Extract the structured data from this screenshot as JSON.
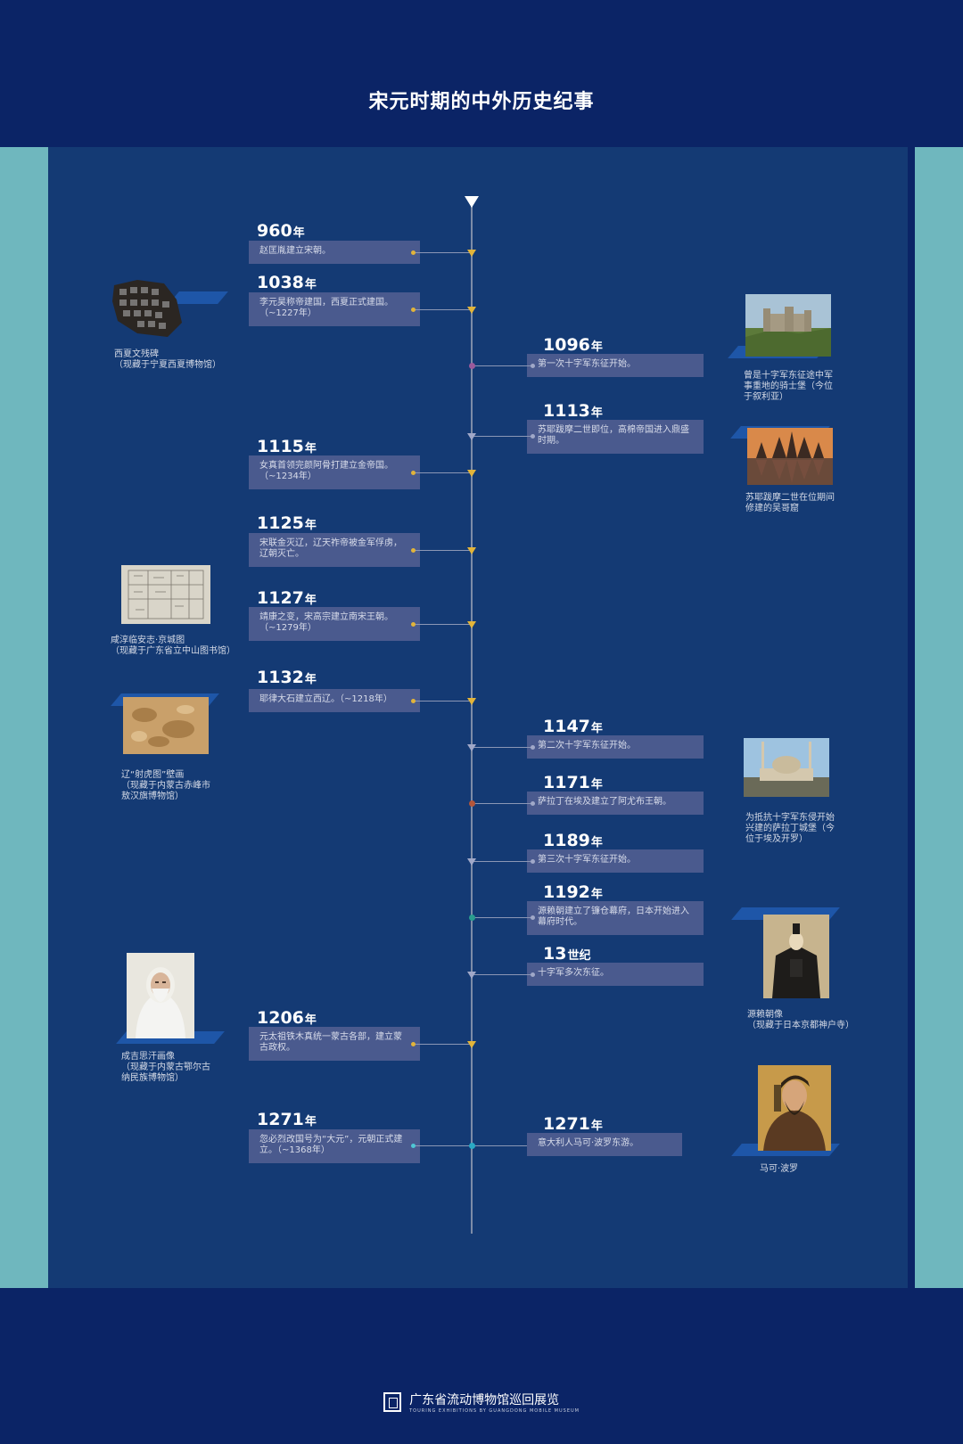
{
  "title": "宋元时期的中外历史纪事",
  "year_unit": "年",
  "century_unit": "世纪",
  "events": [
    {
      "year": "960",
      "unit": "年",
      "text": "赵匡胤建立宋朝。"
    },
    {
      "year": "1038",
      "unit": "年",
      "text": "李元昊称帝建国，西夏正式建国。（~1227年）"
    },
    {
      "year": "1096",
      "unit": "年",
      "text": "第一次十字军东征开始。"
    },
    {
      "year": "1113",
      "unit": "年",
      "text": "苏耶跋摩二世即位，高棉帝国进入鼎盛时期。"
    },
    {
      "year": "1115",
      "unit": "年",
      "text": "女真首领完颜阿骨打建立金帝国。（~1234年）"
    },
    {
      "year": "1125",
      "unit": "年",
      "text": "宋联金灭辽，辽天祚帝被金军俘虏，辽朝灭亡。"
    },
    {
      "year": "1127",
      "unit": "年",
      "text": "靖康之变，宋高宗建立南宋王朝。（~1279年）"
    },
    {
      "year": "1132",
      "unit": "年",
      "text": "耶律大石建立西辽。（~1218年）"
    },
    {
      "year": "1147",
      "unit": "年",
      "text": "第二次十字军东征开始。"
    },
    {
      "year": "1171",
      "unit": "年",
      "text": "萨拉丁在埃及建立了阿尤布王朝。"
    },
    {
      "year": "1189",
      "unit": "年",
      "text": "第三次十字军东征开始。"
    },
    {
      "year": "1192",
      "unit": "年",
      "text": "源赖朝建立了镰仓幕府，日本开始进入幕府时代。"
    },
    {
      "year": "13",
      "unit": "世纪",
      "text": "十字军多次东征。"
    },
    {
      "year": "1206",
      "unit": "年",
      "text": "元太祖铁木真统一蒙古各部，建立蒙古政权。"
    },
    {
      "year": "1271",
      "unit": "年",
      "text": "忽必烈改国号为“大元”，元朝正式建立。（~1368年）"
    },
    {
      "year": "1271",
      "unit": "年",
      "text": "意大利人马可·波罗东游。"
    }
  ],
  "images": [
    {
      "icon": "stele-fragment-image",
      "caption": [
        "西夏文残碑",
        "（现藏于宁夏西夏博物馆）"
      ]
    },
    {
      "icon": "crusader-castle-image",
      "caption": [
        "曾是十字军东征途中军事重地的骑士堡（今位",
        "于叙利亚）"
      ]
    },
    {
      "icon": "angkor-wat-image",
      "caption": [
        "苏耶跋摩二世在位期间",
        "修建的吴哥窟"
      ]
    },
    {
      "icon": "city-map-image",
      "caption": [
        "咸淳临安志·京城图",
        "（现藏于广东省立中山图书馆）"
      ]
    },
    {
      "icon": "tiger-mural-image",
      "caption": [
        "辽“射虎图”壁画",
        "（现藏于内蒙古赤峰市",
        "敖汉旗博物馆）"
      ]
    },
    {
      "icon": "citadel-image",
      "caption": [
        "为抵抗十字军东侵开始",
        "兴建的萨拉丁城堡（今",
        "位于埃及开罗）"
      ]
    },
    {
      "icon": "minamoto-portrait-image",
      "caption": [
        "源赖朝像",
        "（现藏于日本京都神户寺）"
      ]
    },
    {
      "icon": "genghis-khan-portrait-image",
      "caption": [
        "成吉思汗画像",
        "（现藏于内蒙古鄂尔古",
        "纳民族博物馆）"
      ]
    },
    {
      "icon": "marco-polo-portrait-image",
      "caption": [
        "马可·波罗"
      ]
    }
  ],
  "footer": {
    "cn": "广东省流动博物馆巡回展览",
    "en": "TOURING EXHIBITIONS BY GUANGDONG MOBILE MUSEUM"
  },
  "colors": {
    "background": "#0b2466",
    "panel": "#143a74",
    "side": "#6fb7be",
    "box": "#4a5a8e",
    "marker": "#e2b43a"
  }
}
